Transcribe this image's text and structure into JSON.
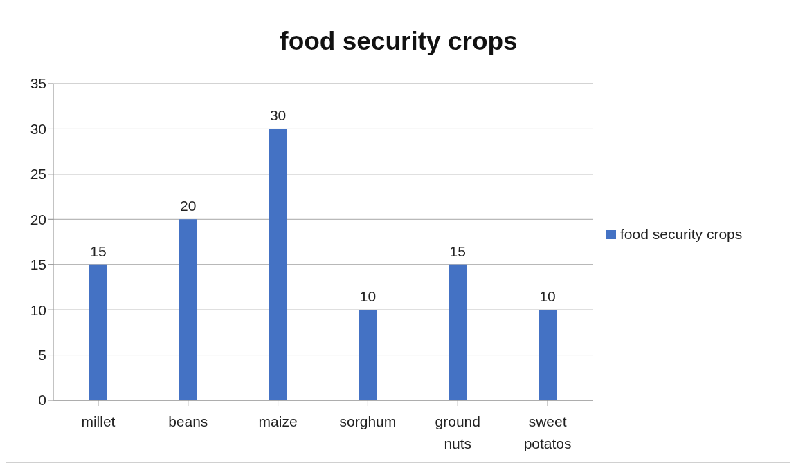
{
  "chart_data": {
    "type": "bar",
    "title": "food security crops",
    "categories": [
      "millet",
      "beans",
      "maize",
      "sorghum",
      "ground nuts",
      "sweet potatos"
    ],
    "series": [
      {
        "name": "food security crops",
        "color": "#4472c4",
        "values": [
          15,
          20,
          30,
          10,
          15,
          10
        ]
      }
    ],
    "ylim": [
      0,
      35
    ],
    "yticks": [
      0,
      5,
      10,
      15,
      20,
      25,
      30,
      35
    ],
    "grid": "y",
    "legend": "right",
    "data_labels": true
  }
}
